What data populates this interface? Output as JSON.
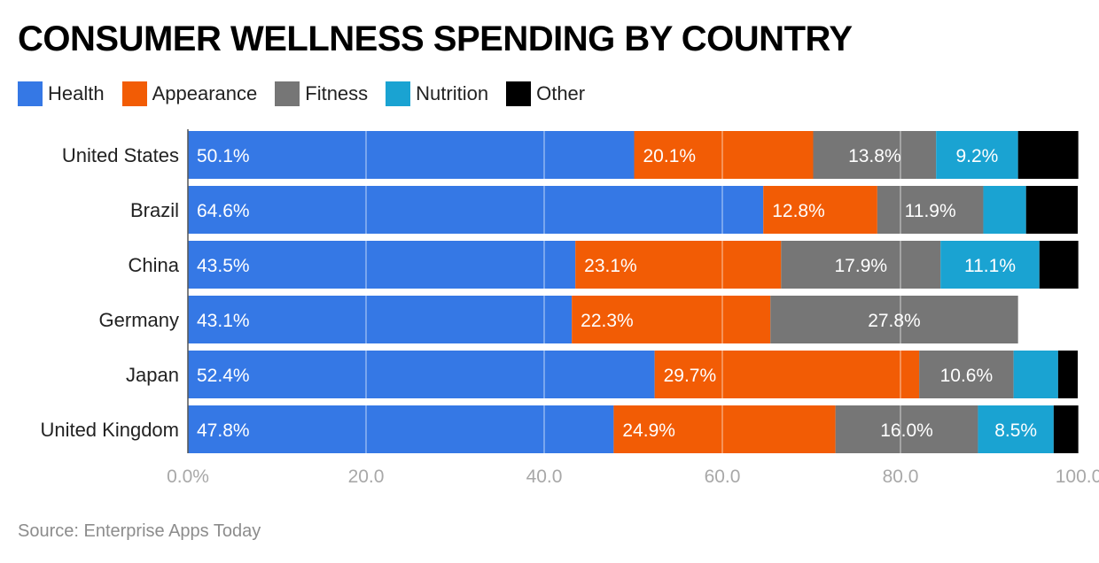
{
  "title": "CONSUMER WELLNESS SPENDING BY COUNTRY",
  "source": "Source: Enterprise Apps Today",
  "chart_data": {
    "type": "bar",
    "orientation": "horizontal",
    "stacked": true,
    "title": "CONSUMER WELLNESS SPENDING BY COUNTRY",
    "categories": [
      "United States",
      "Brazil",
      "China",
      "Germany",
      "Japan",
      "United Kingdom"
    ],
    "series": [
      {
        "name": "Health",
        "color": "#3578e5",
        "values": [
          50.1,
          64.6,
          43.5,
          43.1,
          52.4,
          47.8
        ],
        "labels": [
          "50.1%",
          "64.6%",
          "43.5%",
          "43.1%",
          "52.4%",
          "47.8%"
        ]
      },
      {
        "name": "Appearance",
        "color": "#f25c05",
        "values": [
          20.1,
          12.8,
          23.1,
          22.3,
          29.7,
          24.9
        ],
        "labels": [
          "20.1%",
          "12.8%",
          "23.1%",
          "22.3%",
          "29.7%",
          "24.9%"
        ]
      },
      {
        "name": "Fitness",
        "color": "#767676",
        "values": [
          13.8,
          11.9,
          17.9,
          27.8,
          10.6,
          16.0
        ],
        "labels": [
          "13.8%",
          "11.9%",
          "17.9%",
          "27.8%",
          "10.6%",
          "16.0%"
        ]
      },
      {
        "name": "Nutrition",
        "color": "#1aa3d2",
        "values": [
          9.2,
          4.8,
          11.1,
          0,
          5.0,
          8.5
        ],
        "labels": [
          "9.2%",
          "",
          "11.1%",
          "",
          "",
          "8.5%"
        ]
      },
      {
        "name": "Other",
        "color": "#000000",
        "values": [
          6.8,
          5.8,
          4.4,
          0,
          2.2,
          2.8
        ],
        "labels": [
          "",
          "",
          "",
          "",
          "",
          ""
        ]
      }
    ],
    "xlim": [
      0,
      100
    ],
    "xticks": [
      0,
      20,
      40,
      60,
      80,
      100
    ],
    "xtick_labels": [
      "0.0%",
      "20.0",
      "40.0",
      "60.0",
      "80.0",
      "100.0"
    ],
    "grid": true,
    "legend_position": "top-left"
  }
}
